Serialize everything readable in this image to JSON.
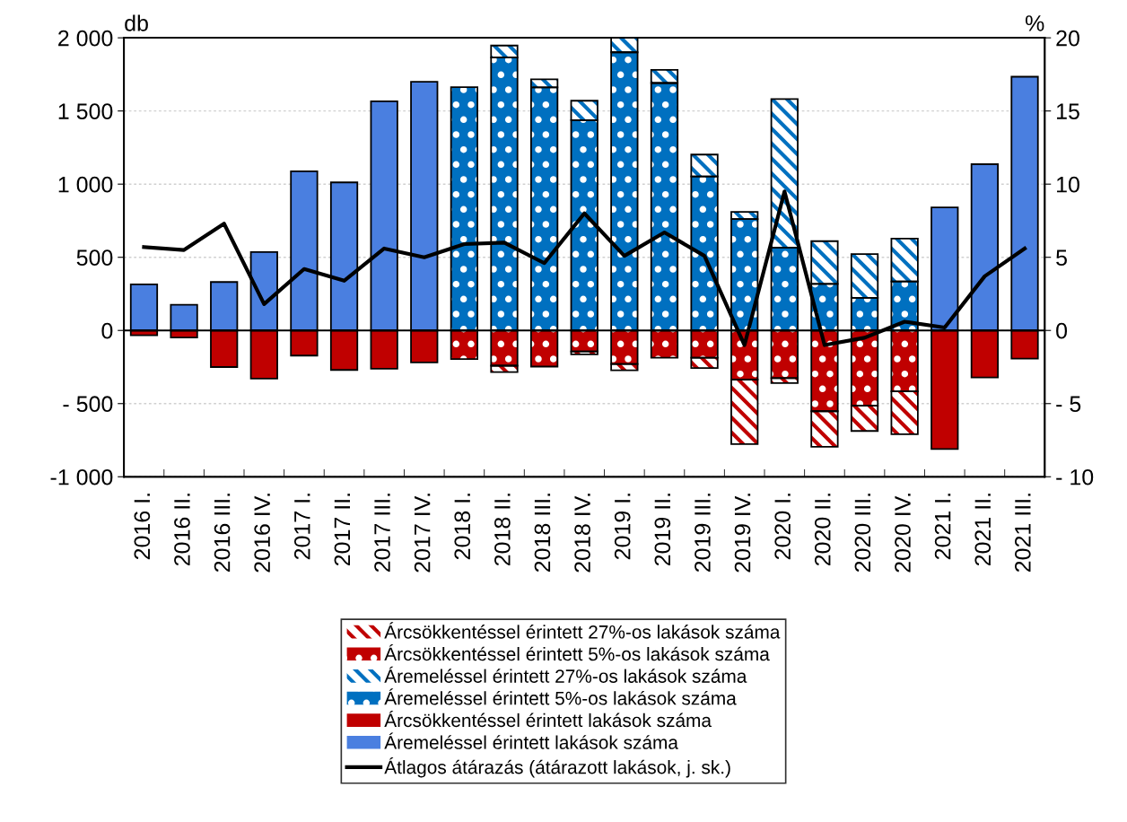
{
  "chart_data": {
    "type": "bar",
    "stacked": true,
    "ylabel": "db",
    "y2label": "%",
    "categories": [
      "2016 I.",
      "2016 II.",
      "2016 III.",
      "2016 IV.",
      "2017 I.",
      "2017 II.",
      "2017 III.",
      "2017 IV.",
      "2018 I.",
      "2018 II.",
      "2018 III.",
      "2018 IV.",
      "2019 I.",
      "2019 II.",
      "2019 III.",
      "2019 IV.",
      "2020 I.",
      "2020 II.",
      "2020 III.",
      "2020 IV.",
      "2021 I.",
      "2021 II.",
      "2021 III."
    ],
    "series": [
      {
        "name": "Áremeléssel érintett lakások száma",
        "color": "#4a7fe0",
        "values": [
          315,
          176,
          331,
          536,
          1088,
          1012,
          1566,
          1699,
          null,
          null,
          null,
          null,
          null,
          null,
          null,
          null,
          null,
          null,
          null,
          null,
          841,
          1136,
          1734
        ]
      },
      {
        "name": "Áremeléssel érintett 5%-os lakások száma",
        "color": "#0070c0",
        "values": [
          null,
          null,
          null,
          null,
          null,
          null,
          null,
          null,
          1663,
          1865,
          1661,
          1437,
          1901,
          1691,
          1052,
          761,
          567,
          318,
          223,
          335,
          null,
          null,
          null
        ]
      },
      {
        "name": "Áremeléssel érintett 27%-os lakások száma",
        "color": "#0070c0",
        "values": [
          null,
          null,
          null,
          null,
          null,
          null,
          null,
          null,
          null,
          82,
          55,
          133,
          99,
          90,
          150,
          49,
          1014,
          292,
          299,
          293,
          null,
          null,
          null
        ]
      },
      {
        "name": "Árcsökkentéssel érintett lakások száma",
        "color": "#c00000",
        "values": [
          -33,
          -49,
          -250,
          -329,
          -172,
          -270,
          -262,
          -219,
          null,
          null,
          null,
          null,
          null,
          null,
          null,
          null,
          null,
          null,
          null,
          null,
          -810,
          -321,
          -192
        ]
      },
      {
        "name": "Árcsökkentéssel érintett 5%-os lakások száma",
        "color": "#c00000",
        "values": [
          null,
          null,
          null,
          null,
          null,
          null,
          null,
          null,
          -196,
          -241,
          -247,
          -143,
          -229,
          -186,
          -186,
          -336,
          -326,
          -552,
          -515,
          -416,
          null,
          null,
          null
        ]
      },
      {
        "name": "Árcsökkentéssel érintett 27%-os lakások száma",
        "color": "#c00000",
        "values": [
          null,
          null,
          null,
          null,
          null,
          null,
          null,
          null,
          null,
          -43,
          null,
          -21,
          -43,
          null,
          -71,
          -441,
          -34,
          -243,
          -172,
          -293,
          null,
          null,
          null
        ]
      },
      {
        "name": "Átlagos átárazás (átárazott lakások, j. sk.)",
        "type": "line",
        "axis": "y2",
        "color": "#000000",
        "marker": "none",
        "values": [
          5.7,
          5.5,
          7.3,
          1.8,
          4.2,
          3.4,
          5.6,
          5.0,
          5.9,
          6.0,
          4.6,
          8.0,
          5.1,
          6.7,
          5.1,
          -1.0,
          9.5,
          -1.0,
          -0.5,
          0.6,
          0.2,
          3.7,
          5.6
        ]
      }
    ],
    "ylim": [
      -1000,
      2000
    ],
    "yticks": [
      {
        "value": -1000,
        "label": "-1 000"
      },
      {
        "value": -500,
        "label": "- 500"
      },
      0,
      500,
      {
        "value": 1000,
        "label": "1 000"
      },
      {
        "value": 1500,
        "label": "1 500"
      },
      {
        "value": 2000,
        "label": "2 000"
      }
    ],
    "y2lim": [
      -10,
      20
    ],
    "y2ticks": [
      {
        "value": -10,
        "label": "- 10"
      },
      {
        "value": -5,
        "label": "- 5"
      },
      0,
      5,
      10,
      15,
      20
    ],
    "grid": "y",
    "legend": "bottom"
  }
}
